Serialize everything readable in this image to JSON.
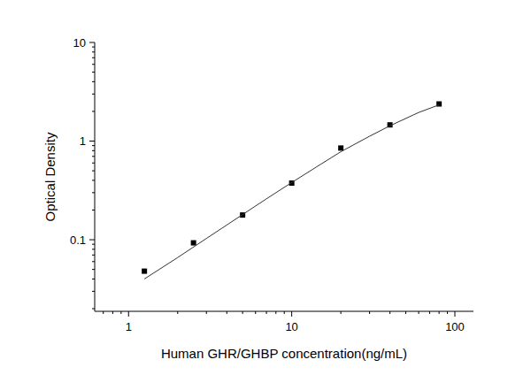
{
  "chart_data": {
    "type": "scatter",
    "x_label": "Human GHR/GHBP concentration(ng/mL)",
    "y_label": "Optical Density",
    "log": true,
    "grid": false,
    "xlim": [
      0.62,
      130
    ],
    "ylim": [
      0.0188,
      10
    ],
    "xticks": [
      1,
      10,
      100
    ],
    "yticks": [
      0.1,
      1,
      10
    ],
    "series": [
      {
        "type": "scatter",
        "marker": "square",
        "color": "#000000",
        "x": [
          1.25,
          2.5,
          5,
          10,
          20,
          40,
          80
        ],
        "values": [
          0.048,
          0.093,
          0.178,
          0.375,
          0.85,
          1.46,
          2.38
        ]
      },
      {
        "type": "line",
        "line_style": "solid",
        "color": "#333333",
        "x": [
          1.25,
          2,
          3,
          5,
          7,
          10,
          15,
          20,
          30,
          40,
          60,
          80
        ],
        "values": [
          0.04,
          0.066,
          0.103,
          0.18,
          0.26,
          0.38,
          0.58,
          0.78,
          1.12,
          1.43,
          1.95,
          2.33
        ]
      }
    ]
  }
}
